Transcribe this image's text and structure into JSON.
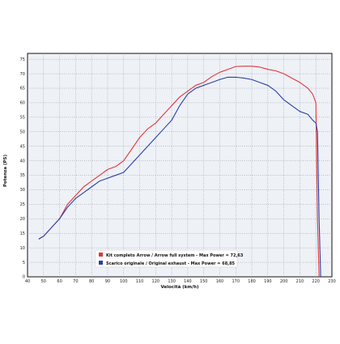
{
  "chart_data": {
    "type": "line",
    "title": "",
    "xlabel": "Velocità (km/h)",
    "ylabel": "Potenza (PS)",
    "xlim": [
      40,
      230
    ],
    "ylim": [
      0,
      77
    ],
    "x_ticks": [
      40,
      50,
      60,
      70,
      80,
      90,
      100,
      110,
      120,
      130,
      140,
      150,
      160,
      170,
      180,
      190,
      200,
      210,
      220,
      230
    ],
    "y_ticks": [
      0,
      5,
      10,
      15,
      20,
      25,
      30,
      35,
      40,
      45,
      50,
      55,
      60,
      65,
      70,
      75
    ],
    "grid": true,
    "grid_style": "dotted",
    "plot_background": "#eef1f6",
    "legend_position": "bottom-center",
    "series": [
      {
        "name": "Kit completo Arrow / Arrow full system - Max Power = 72,63",
        "color": "#e0363c",
        "x": [
          47,
          50,
          55,
          60,
          65,
          70,
          75,
          80,
          85,
          90,
          95,
          100,
          105,
          110,
          115,
          120,
          125,
          130,
          135,
          140,
          145,
          150,
          155,
          160,
          165,
          170,
          175,
          180,
          185,
          190,
          195,
          200,
          205,
          210,
          215,
          218,
          220,
          221,
          222
        ],
        "y": [
          13,
          14,
          17,
          20,
          25,
          28,
          31,
          33,
          35,
          37,
          38,
          40,
          44,
          48,
          51,
          53,
          56,
          59,
          62,
          64,
          66,
          67,
          69,
          70.5,
          71.5,
          72.5,
          72.6,
          72.6,
          72.3,
          71.5,
          71,
          70,
          68.5,
          67,
          65,
          63,
          60,
          20,
          0
        ]
      },
      {
        "name": "Scarico originale / Original exhaust - Max Power = 68,85",
        "color": "#2b3fa8",
        "x": [
          47,
          50,
          55,
          60,
          65,
          70,
          75,
          80,
          85,
          90,
          95,
          100,
          105,
          110,
          115,
          120,
          125,
          130,
          135,
          140,
          145,
          150,
          155,
          160,
          165,
          170,
          175,
          180,
          185,
          190,
          195,
          200,
          205,
          210,
          215,
          218,
          220,
          221,
          222,
          223
        ],
        "y": [
          13,
          14,
          17,
          20,
          24,
          27,
          29,
          31,
          33,
          34,
          35,
          36,
          39,
          42,
          45,
          48,
          51,
          54,
          59,
          63,
          65,
          66,
          67,
          68,
          68.8,
          68.8,
          68.5,
          68,
          67,
          66,
          64,
          61,
          59,
          57,
          56,
          54,
          53,
          50,
          20,
          0
        ]
      }
    ]
  }
}
